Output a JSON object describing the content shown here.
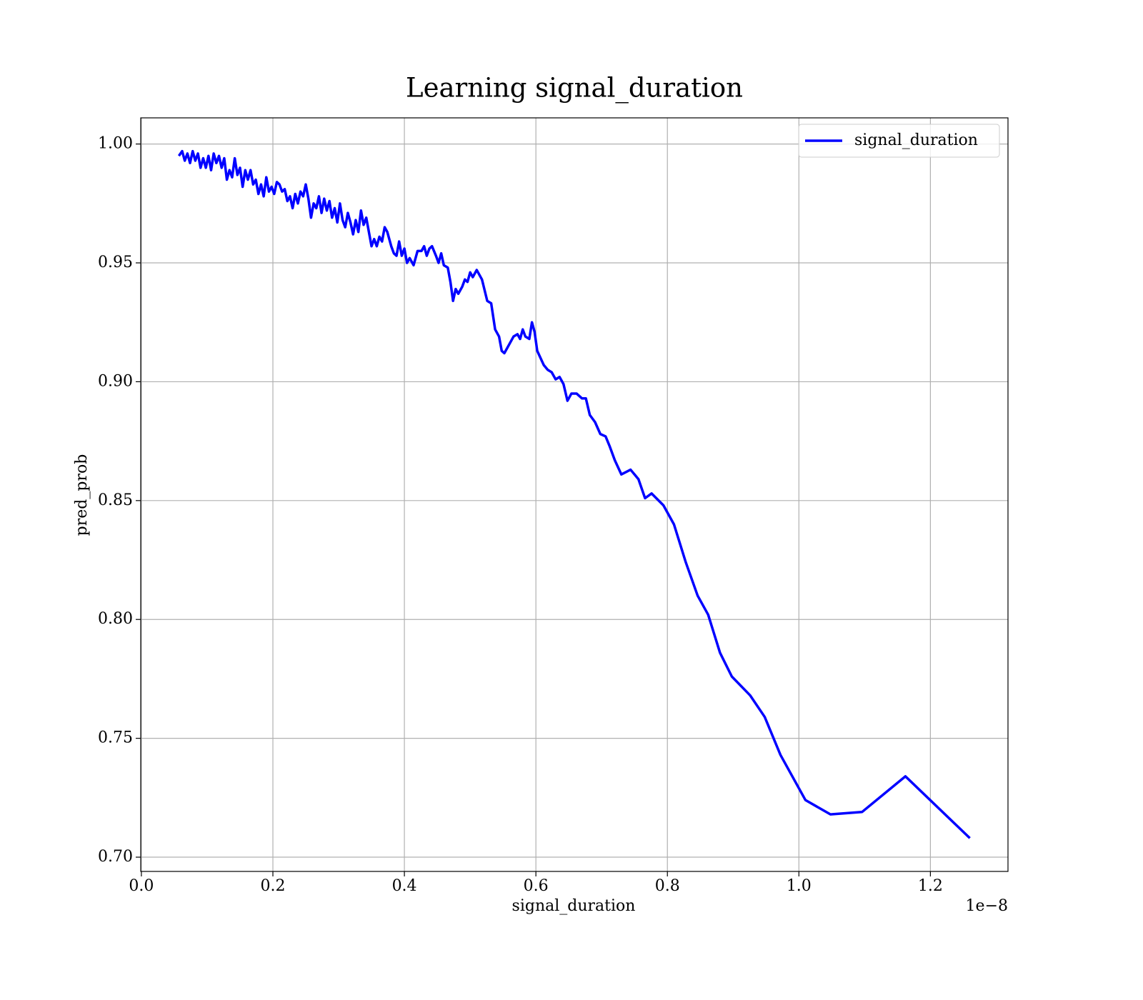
{
  "chart_data": {
    "type": "line",
    "title": "Learning signal_duration",
    "x_label": "signal_duration",
    "y_label": "pred_prob",
    "x_offset_label": "1e−8",
    "xlim": [
      -0.001,
      1.318
    ],
    "ylim": [
      0.694,
      1.011
    ],
    "xticks": [
      {
        "value": 0,
        "label": "0.0"
      },
      0.2,
      0.4,
      0.6,
      0.8,
      {
        "value": 1,
        "label": "1.0"
      },
      1.2
    ],
    "yticks": [
      {
        "value": 0.7,
        "label": "0.70"
      },
      0.75,
      {
        "value": 0.8,
        "label": "0.80"
      },
      0.85,
      {
        "value": 0.9,
        "label": "0.90"
      },
      0.95,
      {
        "value": 1,
        "label": "1.00"
      }
    ],
    "grid": true,
    "legend": "upper right",
    "x": [
      0.057,
      0.062,
      0.066,
      0.07,
      0.074,
      0.078,
      0.082,
      0.086,
      0.09,
      0.094,
      0.098,
      0.102,
      0.106,
      0.11,
      0.114,
      0.118,
      0.122,
      0.126,
      0.13,
      0.134,
      0.138,
      0.142,
      0.146,
      0.15,
      0.154,
      0.158,
      0.162,
      0.166,
      0.17,
      0.174,
      0.178,
      0.182,
      0.186,
      0.19,
      0.194,
      0.198,
      0.202,
      0.206,
      0.21,
      0.214,
      0.218,
      0.222,
      0.226,
      0.23,
      0.234,
      0.238,
      0.242,
      0.246,
      0.25,
      0.254,
      0.258,
      0.262,
      0.266,
      0.27,
      0.274,
      0.278,
      0.282,
      0.286,
      0.29,
      0.294,
      0.298,
      0.302,
      0.306,
      0.31,
      0.314,
      0.318,
      0.322,
      0.326,
      0.33,
      0.334,
      0.338,
      0.342,
      0.346,
      0.35,
      0.354,
      0.358,
      0.362,
      0.366,
      0.37,
      0.374,
      0.38,
      0.384,
      0.388,
      0.392,
      0.396,
      0.4,
      0.404,
      0.408,
      0.414,
      0.42,
      0.426,
      0.43,
      0.434,
      0.438,
      0.442,
      0.448,
      0.452,
      0.456,
      0.46,
      0.466,
      0.47,
      0.474,
      0.478,
      0.482,
      0.488,
      0.492,
      0.496,
      0.5,
      0.504,
      0.51,
      0.518,
      0.526,
      0.532,
      0.538,
      0.544,
      0.548,
      0.552,
      0.56,
      0.566,
      0.572,
      0.576,
      0.58,
      0.584,
      0.59,
      0.594,
      0.598,
      0.602,
      0.612,
      0.618,
      0.624,
      0.63,
      0.636,
      0.642,
      0.648,
      0.654,
      0.662,
      0.67,
      0.676,
      0.682,
      0.69,
      0.698,
      0.706,
      0.712,
      0.72,
      0.73,
      0.744,
      0.756,
      0.766,
      0.776,
      0.794,
      0.81,
      0.828,
      0.846,
      0.862,
      0.88,
      0.898,
      0.926,
      0.948,
      0.972,
      1.01,
      1.048,
      1.096,
      1.162,
      1.26
    ],
    "series": [
      {
        "name": "signal_duration",
        "color": "#0000ff",
        "values": [
          0.995,
          0.997,
          0.993,
          0.996,
          0.992,
          0.997,
          0.993,
          0.996,
          0.99,
          0.994,
          0.99,
          0.995,
          0.989,
          0.996,
          0.992,
          0.995,
          0.99,
          0.994,
          0.985,
          0.989,
          0.986,
          0.994,
          0.987,
          0.99,
          0.982,
          0.989,
          0.985,
          0.989,
          0.983,
          0.985,
          0.979,
          0.983,
          0.978,
          0.986,
          0.98,
          0.982,
          0.979,
          0.984,
          0.983,
          0.98,
          0.981,
          0.976,
          0.978,
          0.973,
          0.979,
          0.975,
          0.98,
          0.978,
          0.983,
          0.977,
          0.969,
          0.975,
          0.973,
          0.978,
          0.971,
          0.977,
          0.972,
          0.976,
          0.969,
          0.973,
          0.967,
          0.975,
          0.968,
          0.965,
          0.971,
          0.967,
          0.962,
          0.968,
          0.963,
          0.972,
          0.966,
          0.969,
          0.963,
          0.957,
          0.96,
          0.957,
          0.961,
          0.959,
          0.965,
          0.963,
          0.957,
          0.954,
          0.953,
          0.959,
          0.953,
          0.956,
          0.95,
          0.952,
          0.949,
          0.955,
          0.955,
          0.957,
          0.953,
          0.956,
          0.957,
          0.953,
          0.95,
          0.954,
          0.949,
          0.948,
          0.942,
          0.934,
          0.939,
          0.937,
          0.94,
          0.943,
          0.942,
          0.946,
          0.944,
          0.947,
          0.943,
          0.934,
          0.933,
          0.922,
          0.919,
          0.913,
          0.912,
          0.916,
          0.919,
          0.92,
          0.918,
          0.922,
          0.919,
          0.918,
          0.925,
          0.921,
          0.913,
          0.907,
          0.905,
          0.904,
          0.901,
          0.902,
          0.899,
          0.892,
          0.895,
          0.895,
          0.893,
          0.893,
          0.886,
          0.883,
          0.878,
          0.877,
          0.873,
          0.867,
          0.861,
          0.863,
          0.859,
          0.851,
          0.853,
          0.848,
          0.84,
          0.824,
          0.81,
          0.802,
          0.786,
          0.776,
          0.768,
          0.759,
          0.743,
          0.724,
          0.718,
          0.719,
          0.734,
          0.708
        ]
      }
    ]
  }
}
